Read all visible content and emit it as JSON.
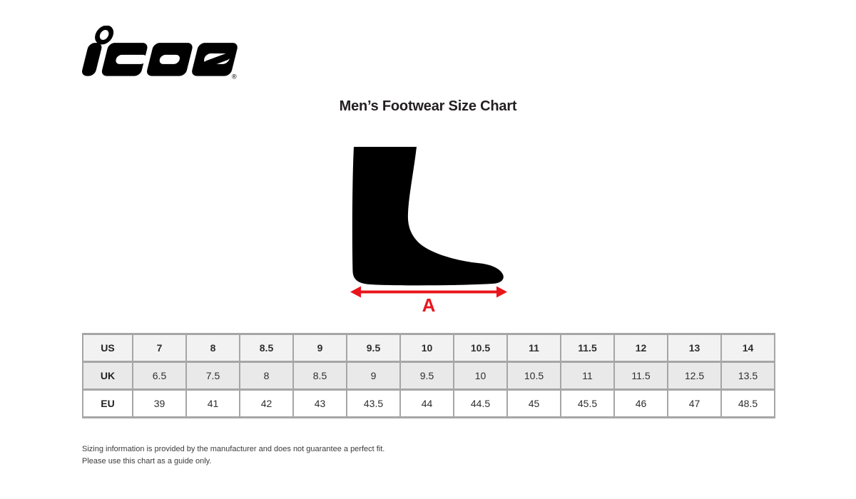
{
  "brand": {
    "logo_text": "icon",
    "registered_mark": "®"
  },
  "title": "Men’s Footwear Size Chart",
  "figure": {
    "dimension_label": "A",
    "foot_color": "#000000",
    "arrow_color": "#e9151d"
  },
  "table": {
    "border_color": "#a6a6a6",
    "row_backgrounds": [
      "#f2f2f2",
      "#e9e9e9",
      "#ffffff"
    ],
    "rows": [
      {
        "label": "US",
        "bold_values": true,
        "values": [
          "7",
          "8",
          "8.5",
          "9",
          "9.5",
          "10",
          "10.5",
          "11",
          "11.5",
          "12",
          "13",
          "14"
        ]
      },
      {
        "label": "UK",
        "bold_values": false,
        "values": [
          "6.5",
          "7.5",
          "8",
          "8.5",
          "9",
          "9.5",
          "10",
          "10.5",
          "11",
          "11.5",
          "12.5",
          "13.5"
        ]
      },
      {
        "label": "EU",
        "bold_values": false,
        "values": [
          "39",
          "41",
          "42",
          "43",
          "43.5",
          "44",
          "44.5",
          "45",
          "45.5",
          "46",
          "47",
          "48.5"
        ]
      }
    ]
  },
  "chart_data": {
    "type": "table",
    "title": "Men’s Footwear Size Chart",
    "row_headers": [
      "US",
      "UK",
      "EU"
    ],
    "rows": {
      "US": [
        7,
        8,
        8.5,
        9,
        9.5,
        10,
        10.5,
        11,
        11.5,
        12,
        13,
        14
      ],
      "UK": [
        6.5,
        7.5,
        8,
        8.5,
        9,
        9.5,
        10,
        10.5,
        11,
        11.5,
        12.5,
        13.5
      ],
      "EU": [
        39,
        41,
        42,
        43,
        43.5,
        44,
        44.5,
        45,
        45.5,
        46,
        47,
        48.5
      ]
    },
    "annotation": "A = foot length dimension shown under foot silhouette"
  },
  "footer": {
    "line1": "Sizing information is provided by the manufacturer and does not guarantee a perfect fit.",
    "line2": "Please use this chart as a guide only."
  }
}
